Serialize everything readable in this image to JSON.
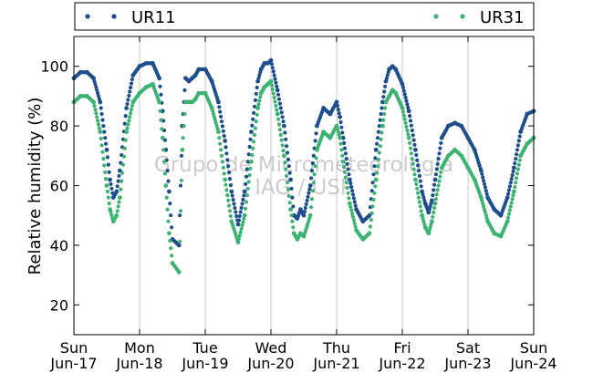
{
  "chart_data": {
    "type": "scatter",
    "title": "",
    "xlabel": "",
    "ylabel": "Relative humidity (%)",
    "ylim": [
      10,
      110
    ],
    "yticks": [
      20,
      40,
      60,
      80,
      100
    ],
    "xlim": [
      0,
      7
    ],
    "grid": "vertical at day boundaries",
    "legend_placement": "top",
    "x_unit": "days since Sun Jun-17",
    "x_ticks": [
      {
        "day": "Sun",
        "date": "Jun-17"
      },
      {
        "day": "Mon",
        "date": "Jun-18"
      },
      {
        "day": "Tue",
        "date": "Jun-19"
      },
      {
        "day": "Wed",
        "date": "Jun-20"
      },
      {
        "day": "Thu",
        "date": "Jun-21"
      },
      {
        "day": "Fri",
        "date": "Jun-22"
      },
      {
        "day": "Sat",
        "date": "Jun-23"
      },
      {
        "day": "Sun",
        "date": "Jun-24"
      }
    ],
    "watermark": [
      "Grupo de Micrometeorologia",
      "IAG / USP"
    ],
    "series": [
      {
        "name": "UR11",
        "color": "#1f4e8c",
        "x": [
          0.0,
          0.1,
          0.2,
          0.3,
          0.4,
          0.5,
          0.55,
          0.6,
          0.65,
          0.7,
          0.8,
          0.9,
          1.0,
          1.1,
          1.2,
          1.3,
          1.35,
          1.4,
          1.45,
          1.5,
          1.6,
          1.65,
          1.7,
          1.75,
          1.8,
          1.85,
          1.9,
          2.0,
          2.1,
          2.2,
          2.3,
          2.4,
          2.5,
          2.6,
          2.7,
          2.8,
          2.85,
          2.9,
          2.95,
          3.0,
          3.1,
          3.2,
          3.3,
          3.35,
          3.4,
          3.45,
          3.5,
          3.6,
          3.7,
          3.8,
          3.9,
          4.0,
          4.05,
          4.1,
          4.2,
          4.3,
          4.4,
          4.5,
          4.6,
          4.7,
          4.75,
          4.8,
          4.85,
          4.9,
          5.0,
          5.1,
          5.2,
          5.3,
          5.35,
          5.4,
          5.45,
          5.5,
          5.6,
          5.7,
          5.8,
          5.9,
          6.0,
          6.1,
          6.2,
          6.3,
          6.4,
          6.5,
          6.6,
          6.7,
          6.8,
          6.9,
          7.0
        ],
        "values": [
          96,
          98,
          98,
          96,
          88,
          72,
          62,
          56,
          58,
          65,
          86,
          97,
          100,
          101,
          101,
          96,
          85,
          72,
          58,
          42,
          40,
          80,
          96,
          95,
          96,
          97,
          99,
          99,
          95,
          88,
          75,
          58,
          47,
          58,
          78,
          95,
          99,
          101,
          101,
          102,
          92,
          80,
          62,
          50,
          49,
          52,
          50,
          60,
          80,
          86,
          84,
          88,
          83,
          76,
          62,
          52,
          48,
          50,
          72,
          88,
          95,
          99,
          100,
          99,
          94,
          85,
          72,
          58,
          54,
          51,
          55,
          62,
          76,
          80,
          81,
          80,
          76,
          72,
          65,
          56,
          52,
          50,
          56,
          66,
          78,
          84,
          85
        ]
      },
      {
        "name": "UR31",
        "color": "#3cb371",
        "x": [
          0.0,
          0.1,
          0.2,
          0.3,
          0.4,
          0.5,
          0.55,
          0.6,
          0.65,
          0.7,
          0.8,
          0.9,
          1.0,
          1.1,
          1.2,
          1.3,
          1.35,
          1.4,
          1.45,
          1.5,
          1.6,
          1.65,
          1.7,
          1.75,
          1.8,
          1.85,
          1.9,
          2.0,
          2.1,
          2.2,
          2.3,
          2.4,
          2.5,
          2.6,
          2.7,
          2.8,
          2.85,
          2.9,
          2.95,
          3.0,
          3.1,
          3.2,
          3.3,
          3.35,
          3.4,
          3.45,
          3.5,
          3.6,
          3.7,
          3.8,
          3.9,
          4.0,
          4.05,
          4.1,
          4.2,
          4.3,
          4.4,
          4.5,
          4.6,
          4.7,
          4.75,
          4.8,
          4.85,
          4.9,
          5.0,
          5.1,
          5.2,
          5.3,
          5.35,
          5.4,
          5.45,
          5.5,
          5.6,
          5.7,
          5.8,
          5.9,
          6.0,
          6.1,
          6.2,
          6.3,
          6.4,
          6.5,
          6.6,
          6.7,
          6.8,
          6.9,
          7.0
        ],
        "values": [
          88,
          90,
          90,
          88,
          78,
          60,
          52,
          48,
          50,
          56,
          78,
          88,
          91,
          93,
          94,
          88,
          76,
          60,
          44,
          34,
          31,
          72,
          88,
          88,
          88,
          89,
          91,
          91,
          86,
          78,
          62,
          48,
          41,
          50,
          68,
          86,
          91,
          93,
          94,
          95,
          84,
          70,
          52,
          44,
          42,
          44,
          43,
          50,
          72,
          78,
          76,
          80,
          76,
          68,
          54,
          45,
          42,
          44,
          62,
          80,
          88,
          90,
          92,
          91,
          86,
          76,
          62,
          50,
          46,
          44,
          48,
          54,
          66,
          70,
          72,
          70,
          66,
          62,
          56,
          48,
          44,
          43,
          48,
          58,
          70,
          74,
          76
        ]
      }
    ]
  }
}
